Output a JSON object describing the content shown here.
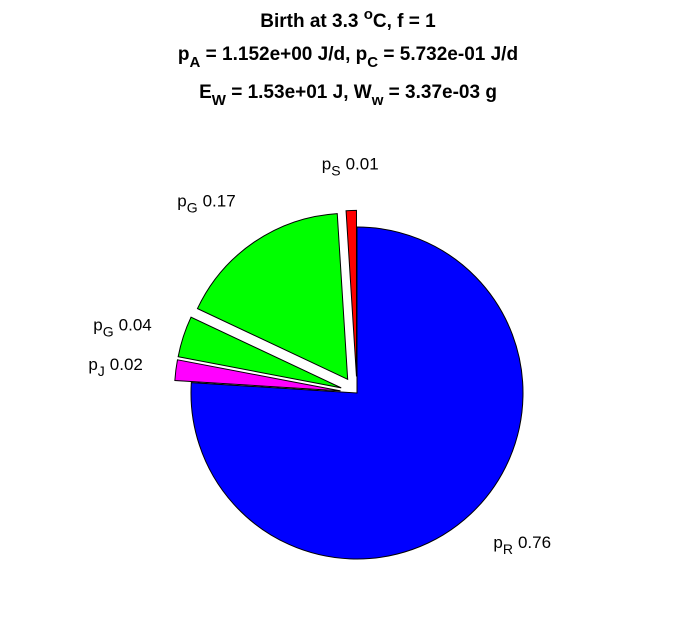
{
  "chart_data": {
    "type": "pie",
    "title": [
      [
        {
          "text": "Birth at 3.3 "
        },
        {
          "text": "o",
          "pos": "sup"
        },
        {
          "text": "C, f = 1"
        }
      ],
      [
        {
          "text": "p"
        },
        {
          "text": "A",
          "pos": "sub"
        },
        {
          "text": " = 1.152e+00 J/d, p"
        },
        {
          "text": "C",
          "pos": "sub"
        },
        {
          "text": " = 5.732e-01 J/d"
        }
      ],
      [
        {
          "text": "E"
        },
        {
          "text": "W",
          "pos": "sub"
        },
        {
          "text": " = 1.53e+01 J, W"
        },
        {
          "text": "w",
          "pos": "sub"
        },
        {
          "text": " = 3.37e-03 g"
        }
      ]
    ],
    "categories": [
      {
        "text": "p",
        "sub": "R"
      },
      {
        "text": "p",
        "sub": "J"
      },
      {
        "text": "p",
        "sub": "G"
      },
      {
        "text": "p",
        "sub": "G"
      },
      {
        "text": "p",
        "sub": "S"
      }
    ],
    "values": [
      0.76,
      0.02,
      0.04,
      0.17,
      0.01
    ],
    "colors": [
      "#0000ff",
      "#ff00ff",
      "#00ff00",
      "#00ff00",
      "#ff0000"
    ],
    "explode": [
      false,
      true,
      true,
      true,
      true
    ]
  }
}
